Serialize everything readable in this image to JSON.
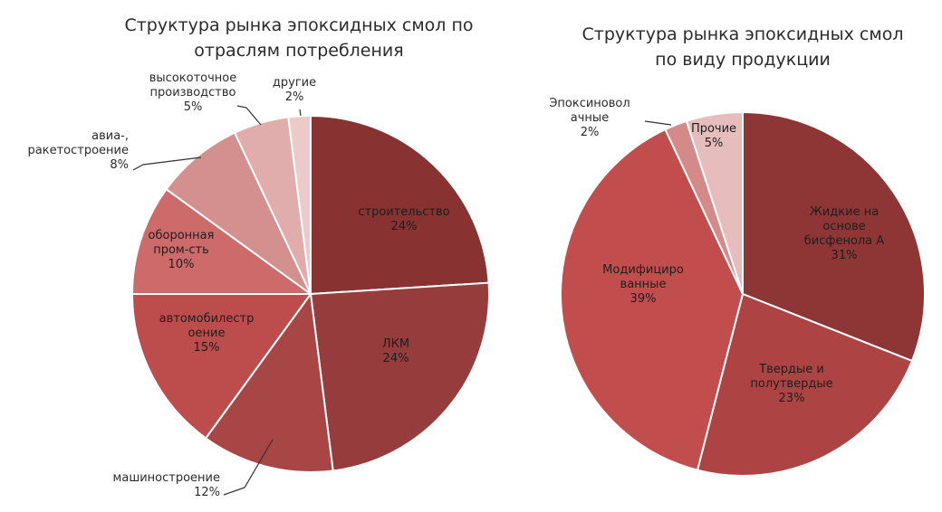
{
  "chart_data": [
    {
      "type": "pie",
      "title": [
        "Структура рынка эпоксидных смол по",
        "отраслям потребления"
      ],
      "slices": [
        {
          "name": "строительство",
          "label_lines": [
            "строительство"
          ],
          "value": 24,
          "value_label": "24%",
          "color": "#883232"
        },
        {
          "name": "ЛКМ",
          "label_lines": [
            "ЛКМ"
          ],
          "value": 24,
          "value_label": "24%",
          "color": "#963c3c"
        },
        {
          "name": "машиностроение",
          "label_lines": [
            "машиностроение"
          ],
          "value": 12,
          "value_label": "12%",
          "color": "#a84545"
        },
        {
          "name": "автомобилестроение",
          "label_lines": [
            "автомобилестр",
            "оение"
          ],
          "value": 15,
          "value_label": "15%",
          "color": "#bd4d4d"
        },
        {
          "name": "оборонная пром-сть",
          "label_lines": [
            "оборонная",
            "пром-сть"
          ],
          "value": 10,
          "value_label": "10%",
          "color": "#cd6b6b"
        },
        {
          "name": "авиа-, ракетостроение",
          "label_lines": [
            "авиа-,",
            "ракетостроение"
          ],
          "value": 8,
          "value_label": "8%",
          "color": "#d48f8f"
        },
        {
          "name": "высокоточное производство",
          "label_lines": [
            "высокоточное",
            "производство"
          ],
          "value": 5,
          "value_label": "5%",
          "color": "#e0acac"
        },
        {
          "name": "другие",
          "label_lines": [
            "другие"
          ],
          "value": 2,
          "value_label": "2%",
          "color": "#eccaca"
        }
      ]
    },
    {
      "type": "pie",
      "title": [
        "Структура рынка эпоксидных смол",
        "по виду продукции"
      ],
      "slices": [
        {
          "name": "Жидкие на основе бисфенола А",
          "label_lines": [
            "Жидкие на",
            "основе",
            "бисфенола А"
          ],
          "value": 31,
          "value_label": "31%",
          "color": "#8e3636"
        },
        {
          "name": "Твердые и полутвердые",
          "label_lines": [
            "Твердые и",
            "полутвердые"
          ],
          "value": 23,
          "value_label": "23%",
          "color": "#ad4343"
        },
        {
          "name": "Модифицированные",
          "label_lines": [
            "Модифициро",
            "ванные"
          ],
          "value": 39,
          "value_label": "39%",
          "color": "#c24d4d"
        },
        {
          "name": "Эпоксиноволачные",
          "label_lines": [
            "Эпоксиновол",
            "ачные"
          ],
          "value": 2,
          "value_label": "2%",
          "color": "#d58a8a"
        },
        {
          "name": "Прочие",
          "label_lines": [
            "Прочие"
          ],
          "value": 5,
          "value_label": "5%",
          "color": "#e6bcbc"
        }
      ]
    }
  ]
}
